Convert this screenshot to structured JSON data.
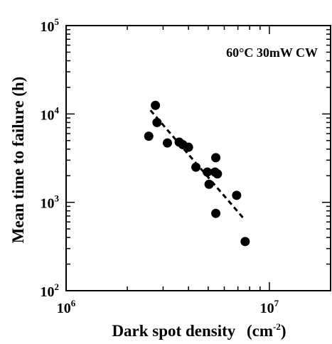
{
  "chart_data": {
    "type": "scatter",
    "x_scale": "log",
    "y_scale": "log",
    "xlim": [
      1000000,
      20000000
    ],
    "ylim": [
      100,
      100000
    ],
    "xlabel_main": "Dark spot density",
    "xlabel_unit_prefix": "(cm",
    "xlabel_unit_exp": "-2",
    "xlabel_unit_suffix": ")",
    "ylabel": "Mean time to failure (h)",
    "annotation": "60°C 30mW CW",
    "x_ticks": [
      {
        "value": 1000000,
        "base": "10",
        "exp": "6"
      },
      {
        "value": 10000000,
        "base": "10",
        "exp": "7"
      }
    ],
    "y_ticks": [
      {
        "value": 100,
        "base": "10",
        "exp": "2"
      },
      {
        "value": 1000,
        "base": "10",
        "exp": "3"
      },
      {
        "value": 10000,
        "base": "10",
        "exp": "4"
      },
      {
        "value": 100000,
        "base": "10",
        "exp": "5"
      }
    ],
    "points": [
      {
        "x": 2550000,
        "y": 5600
      },
      {
        "x": 2750000,
        "y": 12500
      },
      {
        "x": 2800000,
        "y": 8000
      },
      {
        "x": 3150000,
        "y": 4700
      },
      {
        "x": 3600000,
        "y": 4800
      },
      {
        "x": 3750000,
        "y": 4500
      },
      {
        "x": 4000000,
        "y": 4200
      },
      {
        "x": 4350000,
        "y": 2500
      },
      {
        "x": 4950000,
        "y": 2200
      },
      {
        "x": 5050000,
        "y": 1600
      },
      {
        "x": 5400000,
        "y": 2200
      },
      {
        "x": 5450000,
        "y": 3200
      },
      {
        "x": 5550000,
        "y": 2100
      },
      {
        "x": 5450000,
        "y": 750
      },
      {
        "x": 6900000,
        "y": 1200
      },
      {
        "x": 7600000,
        "y": 360
      }
    ],
    "trend_line": {
      "style": "dashed",
      "x": [
        2600000,
        7500000
      ],
      "y": [
        11000,
        650
      ]
    },
    "grid": false,
    "legend": "none"
  }
}
